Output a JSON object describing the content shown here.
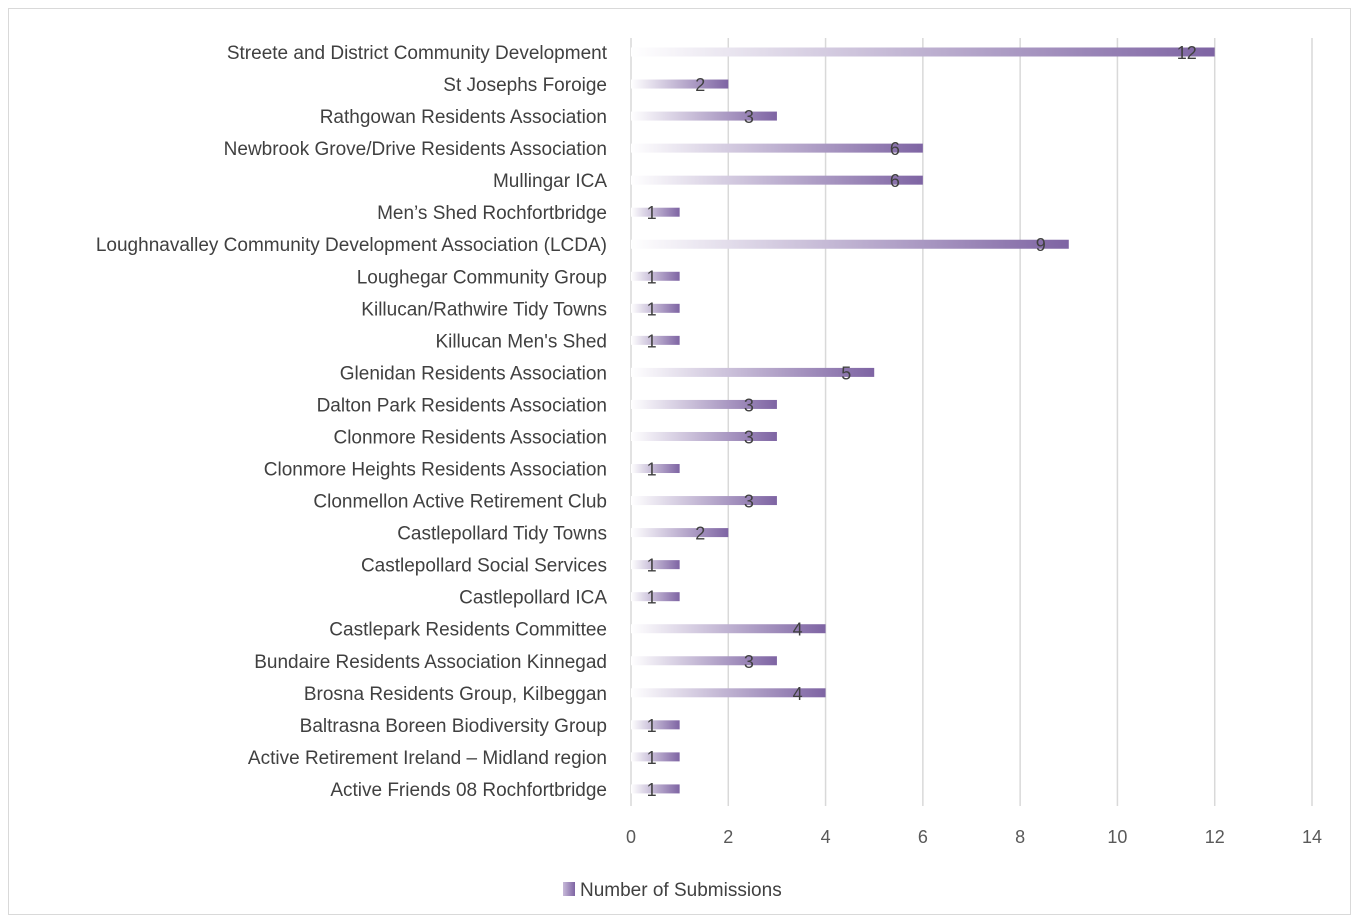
{
  "chart_data": {
    "type": "bar",
    "orientation": "horizontal",
    "categories": [
      "Streete and District Community Development",
      "St Josephs Foroige",
      "Rathgowan Residents Association",
      "Newbrook Grove/Drive Residents Association",
      "Mullingar ICA",
      "Men’s Shed Rochfortbridge",
      "Loughnavalley Community Development Association (LCDA)",
      "Loughegar Community Group",
      "Killucan/Rathwire Tidy Towns",
      "Killucan Men's Shed",
      "Glenidan Residents Association",
      "Dalton Park Residents Association",
      "Clonmore Residents Association",
      "Clonmore Heights Residents Association",
      "Clonmellon Active Retirement Club",
      "Castlepollard Tidy Towns",
      "Castlepollard Social Services",
      "Castlepollard ICA",
      "Castlepark Residents Committee",
      "Bundaire Residents Association  Kinnegad",
      "Brosna Residents Group, Kilbeggan",
      "Baltrasna Boreen Biodiversity Group",
      "Active Retirement Ireland – Midland region",
      "Active Friends 08 Rochfortbridge"
    ],
    "series": [
      {
        "name": "Number of Submissions",
        "values": [
          12,
          2,
          3,
          6,
          6,
          1,
          9,
          1,
          1,
          1,
          5,
          3,
          3,
          1,
          3,
          2,
          1,
          1,
          4,
          3,
          4,
          1,
          1,
          1
        ]
      }
    ],
    "xlim": [
      0,
      14
    ],
    "xticks": [
      "0",
      "2",
      "4",
      "6",
      "8",
      "10",
      "12",
      "14"
    ],
    "grid": true,
    "legend_position": "bottom",
    "colors": {
      "bar_start": "#ffffff",
      "bar_end": "#7e64a3",
      "gridline": "#d9d9d9",
      "text": "#404040"
    }
  }
}
